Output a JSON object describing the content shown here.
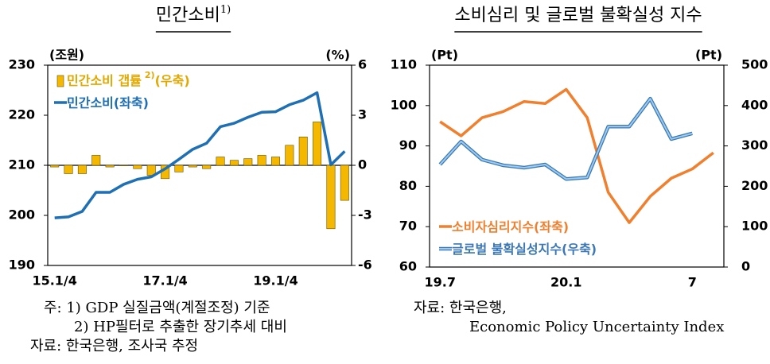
{
  "chart_data": [
    {
      "type": "combo",
      "title": "민간소비",
      "title_note": "1)",
      "y_unit": "(조원)",
      "y2_unit": "(%)",
      "categories": [
        "15.1/4",
        null,
        null,
        null,
        null,
        null,
        null,
        null,
        "17.1/4",
        null,
        null,
        null,
        null,
        null,
        null,
        null,
        "19.1/4",
        null,
        null,
        null,
        null,
        null
      ],
      "ylim": [
        190,
        230
      ],
      "yticks": [
        190,
        200,
        210,
        220,
        230
      ],
      "y2lim": [
        -6,
        6
      ],
      "y2ticks": [
        -6,
        -3,
        0,
        3,
        6
      ],
      "series": [
        {
          "name": "민간소비 갭률",
          "name_note": "2)",
          "name_suffix": "(우축)",
          "type": "bar",
          "axis": "y2",
          "color": "#f5b800",
          "values": [
            -0.1,
            -0.5,
            -0.5,
            0.6,
            -0.1,
            0.0,
            -0.2,
            -0.6,
            -0.8,
            -0.4,
            -0.1,
            -0.2,
            0.5,
            0.3,
            0.4,
            0.6,
            0.5,
            1.2,
            1.7,
            2.6,
            -3.8,
            -2.1
          ]
        },
        {
          "name": "민간소비(좌축)",
          "type": "line",
          "color": "#1f6fb4",
          "values": [
            199.5,
            199.7,
            200.8,
            204.6,
            204.6,
            206.2,
            207.2,
            207.7,
            209.3,
            211.2,
            213.2,
            214.4,
            217.7,
            218.4,
            219.6,
            220.6,
            220.7,
            222.1,
            223.0,
            224.5,
            210.1,
            212.8
          ]
        }
      ],
      "notes": [
        "주: 1) GDP 실질금액(계절조정) 기준",
        "2) HP필터로 추출한 장기추세 대비",
        "자료: 한국은행, 조사국 추정"
      ]
    },
    {
      "type": "line",
      "title": "소비심리 및 글로벌 불확실성 지수",
      "y_unit": "(Pt)",
      "y2_unit": "(Pt)",
      "categories": [
        "19.7",
        null,
        null,
        null,
        null,
        null,
        "20.1",
        null,
        null,
        null,
        null,
        null,
        "7",
        null
      ],
      "ylim": [
        60,
        110
      ],
      "yticks": [
        60,
        70,
        80,
        90,
        100,
        110
      ],
      "y2lim": [
        0,
        500
      ],
      "y2ticks": [
        0,
        100,
        200,
        300,
        400,
        500
      ],
      "series": [
        {
          "name": "소비자심리지수(좌축)",
          "type": "line",
          "color": "#f07f2e",
          "values": [
            96.0,
            92.5,
            97.0,
            98.5,
            101.0,
            100.5,
            104.0,
            97.0,
            78.5,
            71.0,
            77.5,
            82.0,
            84.3,
            88.3
          ]
        },
        {
          "name": "글로벌 불확실성지수(우축)",
          "type": "line",
          "axis": "y2",
          "color": "#9ccbee",
          "values": [
            254,
            311,
            266,
            252,
            246,
            254,
            218,
            222,
            348,
            348,
            417,
            317,
            331,
            null
          ]
        }
      ],
      "notes": [
        "자료: 한국은행,",
        "Economic Policy Uncertainty Index"
      ]
    }
  ]
}
